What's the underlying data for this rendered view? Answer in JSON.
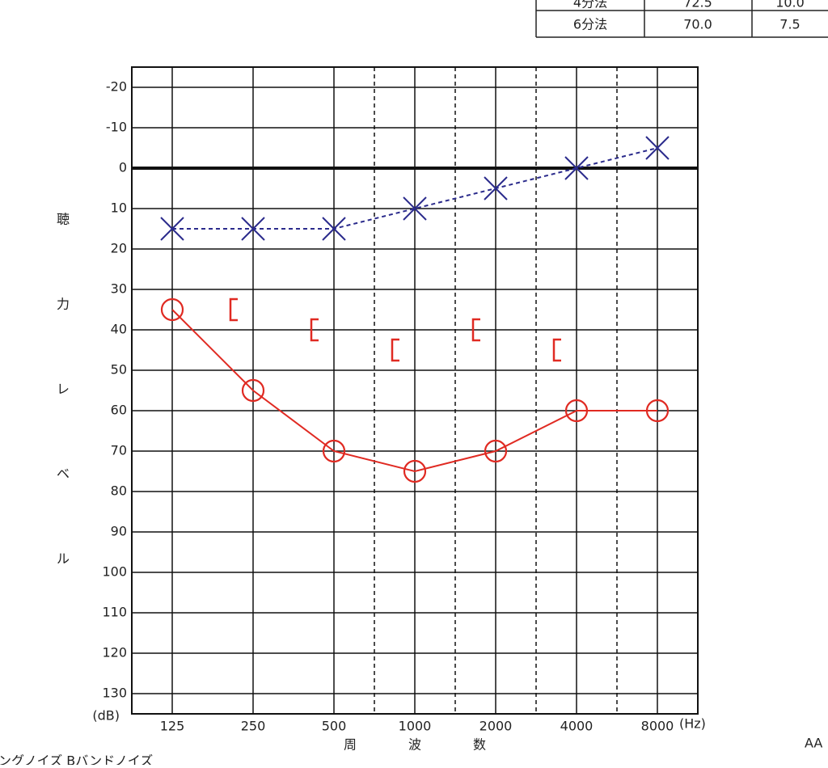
{
  "table": {
    "rows": [
      [
        "4分法",
        "72.5",
        "10.0"
      ],
      [
        "6分法",
        "70.0",
        "7.5"
      ]
    ]
  },
  "chart_data": {
    "type": "line",
    "y_label_chars": [
      "聴",
      "力",
      "レ",
      "ベ",
      "ル"
    ],
    "x_label_chars": [
      "周",
      "波",
      "数"
    ],
    "y_unit": "(dB)",
    "x_unit": "(Hz)",
    "categories": [
      "125",
      "250",
      "500",
      "1000",
      "2000",
      "4000",
      "8000"
    ],
    "ylim": [
      -25,
      135
    ],
    "y_inverted": true,
    "yticks": [
      -20,
      -10,
      0,
      10,
      20,
      30,
      40,
      50,
      60,
      70,
      80,
      90,
      100,
      110,
      120,
      130
    ],
    "grid": true,
    "series": [
      {
        "marker": "circle",
        "color": "#e02a22",
        "line": "solid",
        "values": [
          35,
          55,
          70,
          75,
          70,
          60,
          60
        ]
      },
      {
        "marker": "cross",
        "color": "#2b2b8c",
        "line": "dashed",
        "values": [
          15,
          15,
          15,
          10,
          5,
          0,
          -5
        ]
      },
      {
        "marker": "bracket",
        "color": "#e02a22",
        "line": "none",
        "values": [
          null,
          35,
          40,
          45,
          40,
          45,
          null
        ]
      }
    ]
  },
  "footer": {
    "left": "ングノイズ  Bバンドノイズ",
    "right": "AA"
  }
}
